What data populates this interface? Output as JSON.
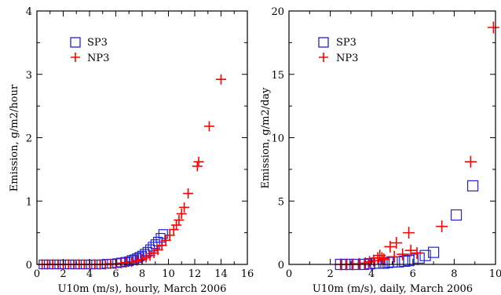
{
  "chart_data": [
    {
      "type": "scatter",
      "xlabel": "U10m (m/s), hourly, March 2006",
      "ylabel": "Emission, g/m2/hour",
      "xlim": [
        0,
        16
      ],
      "ylim": [
        0,
        4
      ],
      "x_ticks": [
        0,
        2,
        4,
        6,
        8,
        10,
        12,
        14,
        16
      ],
      "y_ticks": [
        0,
        1,
        2,
        3,
        4
      ],
      "x_tick_labels": [
        "0",
        "2",
        "4",
        "6",
        "8",
        "10",
        "12",
        "14",
        "16"
      ],
      "y_tick_labels": [
        "0",
        "1",
        "2",
        "3",
        "4"
      ],
      "legend": {
        "placement": "top-left",
        "entries": [
          "SP3",
          "NP3"
        ]
      },
      "series": [
        {
          "name": "SP3",
          "marker": "square",
          "color": "#2020e0",
          "x": [
            0.5,
            0.9,
            1.3,
            1.7,
            2.1,
            2.5,
            2.9,
            3.3,
            3.7,
            4.1,
            4.5,
            4.9,
            5.3,
            5.7,
            6.1,
            6.4,
            6.7,
            7.0,
            7.2,
            7.4,
            7.6,
            7.8,
            8.0,
            8.2,
            8.4,
            8.6,
            8.8,
            9.0,
            9.2,
            9.4,
            9.6
          ],
          "y": [
            0.0,
            0.0,
            0.0,
            0.0,
            0.0,
            0.0,
            0.0,
            0.0,
            0.0,
            0.0,
            0.0,
            0.0,
            0.01,
            0.01,
            0.02,
            0.03,
            0.04,
            0.05,
            0.07,
            0.08,
            0.1,
            0.12,
            0.14,
            0.17,
            0.2,
            0.24,
            0.28,
            0.32,
            0.36,
            0.42,
            0.48
          ]
        },
        {
          "name": "NP3",
          "marker": "plus",
          "color": "#ff0000",
          "x": [
            0.4,
            0.8,
            1.2,
            1.6,
            2.0,
            2.4,
            2.8,
            3.2,
            3.6,
            4.0,
            4.4,
            4.8,
            5.2,
            5.6,
            6.0,
            6.4,
            6.8,
            7.2,
            7.6,
            8.0,
            8.3,
            8.6,
            8.9,
            9.2,
            9.5,
            9.8,
            10.1,
            10.4,
            10.6,
            10.8,
            11.0,
            11.2,
            11.5,
            12.2,
            12.3,
            13.1,
            14.0
          ],
          "y": [
            0.0,
            0.0,
            0.0,
            0.0,
            0.0,
            0.0,
            0.0,
            0.0,
            0.0,
            0.0,
            0.0,
            0.0,
            0.0,
            0.01,
            0.01,
            0.02,
            0.03,
            0.04,
            0.06,
            0.08,
            0.11,
            0.14,
            0.18,
            0.23,
            0.3,
            0.38,
            0.46,
            0.55,
            0.62,
            0.7,
            0.8,
            0.9,
            1.12,
            1.55,
            1.62,
            2.18,
            2.92
          ]
        }
      ]
    },
    {
      "type": "scatter",
      "xlabel": "U10m (m/s), daily, March 2006",
      "ylabel": "Emission, g/m2/day",
      "xlim": [
        0,
        10
      ],
      "ylim": [
        0,
        20
      ],
      "x_ticks": [
        0,
        2,
        4,
        6,
        8,
        10
      ],
      "y_ticks": [
        0,
        5,
        10,
        15,
        20
      ],
      "x_tick_labels": [
        "0",
        "2",
        "4",
        "6",
        "8",
        "10"
      ],
      "y_tick_labels": [
        "0",
        "5",
        "10",
        "15",
        "20"
      ],
      "legend": {
        "placement": "top-left",
        "entries": [
          "SP3",
          "NP3"
        ]
      },
      "series": [
        {
          "name": "SP3",
          "marker": "square",
          "color": "#2020e0",
          "x": [
            2.5,
            2.8,
            3.2,
            3.6,
            3.9,
            4.2,
            4.4,
            4.6,
            4.8,
            5.0,
            5.3,
            5.6,
            5.8,
            6.0,
            6.3,
            6.6,
            7.0,
            8.1,
            8.9
          ],
          "y": [
            0.0,
            0.0,
            0.0,
            0.0,
            0.05,
            0.1,
            0.1,
            0.1,
            0.15,
            0.2,
            0.2,
            0.25,
            0.3,
            0.4,
            0.5,
            0.7,
            0.95,
            3.9,
            6.2
          ]
        },
        {
          "name": "NP3",
          "marker": "plus",
          "color": "#ff0000",
          "x": [
            2.5,
            2.8,
            3.1,
            3.4,
            3.7,
            3.9,
            4.1,
            4.3,
            4.4,
            4.5,
            4.6,
            4.9,
            5.1,
            5.2,
            5.5,
            5.8,
            5.9,
            6.2,
            7.4,
            8.8,
            9.9
          ],
          "y": [
            0.0,
            0.0,
            0.0,
            0.05,
            0.1,
            0.2,
            0.3,
            0.5,
            0.7,
            0.5,
            0.4,
            1.4,
            0.6,
            1.7,
            0.8,
            2.5,
            1.1,
            0.9,
            3.0,
            8.1,
            18.7
          ]
        }
      ]
    }
  ]
}
